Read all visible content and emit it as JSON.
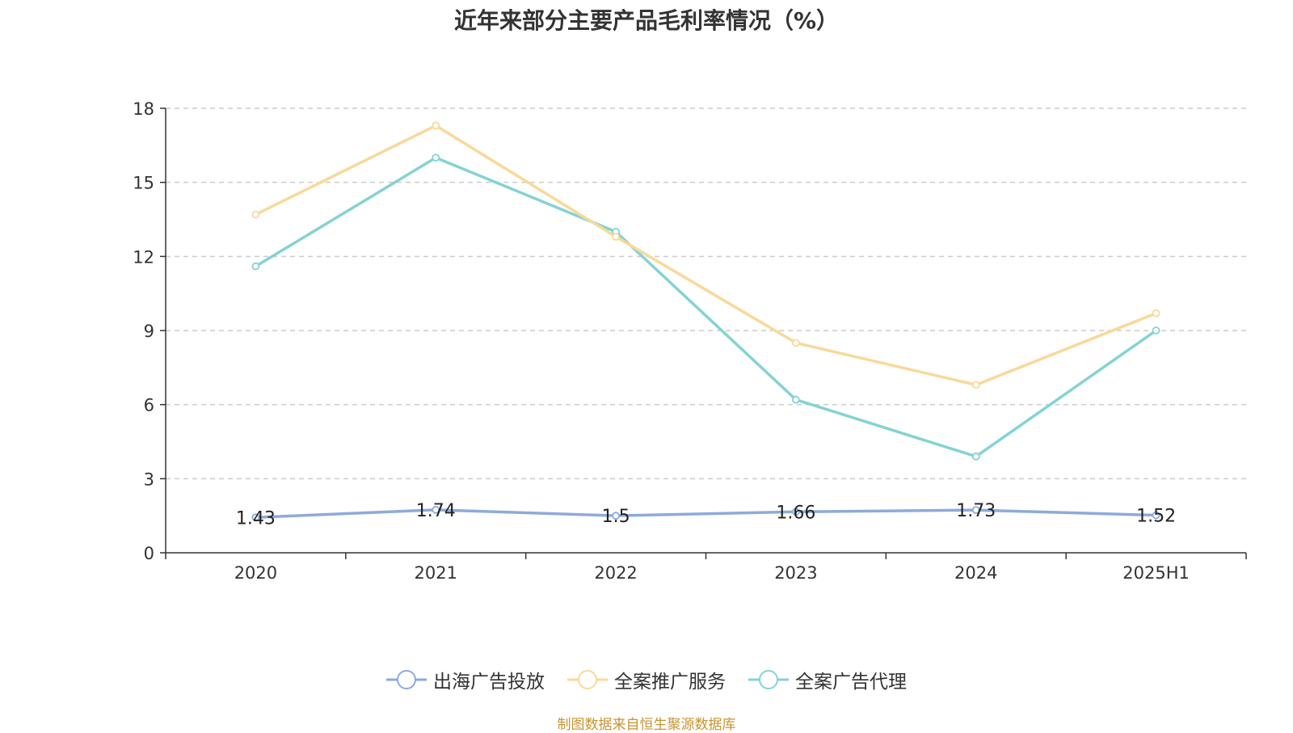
{
  "title": "近年来部分主要产品毛利率情况（%）",
  "source": "制图数据来自恒生聚源数据库",
  "chart_data": {
    "type": "line",
    "categories": [
      "2020",
      "2021",
      "2022",
      "2023",
      "2024",
      "2025H1"
    ],
    "ylim": [
      0,
      18
    ],
    "yticks": [
      0,
      3,
      6,
      9,
      12,
      15,
      18
    ],
    "grid": true,
    "legend_position": "bottom",
    "series": [
      {
        "name": "出海广告投放",
        "color": "#8eaadb",
        "values": [
          1.43,
          1.74,
          1.5,
          1.66,
          1.73,
          1.52
        ],
        "labels": [
          "1.43",
          "1.74",
          "1.5",
          "1.66",
          "1.73",
          "1.52"
        ]
      },
      {
        "name": "全案推广服务",
        "color": "#f9d999",
        "values": [
          13.7,
          17.3,
          12.8,
          8.5,
          6.8,
          9.7
        ]
      },
      {
        "name": "全案广告代理",
        "color": "#84d3d4",
        "values": [
          11.6,
          16.0,
          13.0,
          6.2,
          3.9,
          9.0
        ]
      }
    ]
  }
}
